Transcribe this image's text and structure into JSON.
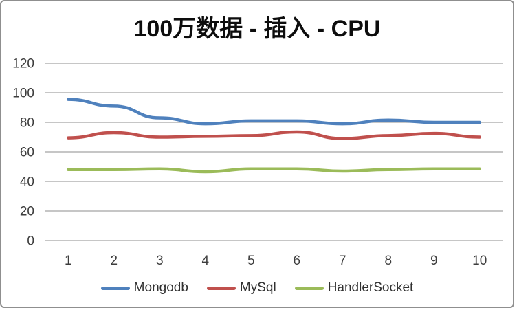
{
  "chart_data": {
    "type": "line",
    "title": "100万数据 - 插入 - CPU",
    "xlabel": "",
    "ylabel": "",
    "categories": [
      "1",
      "2",
      "3",
      "4",
      "5",
      "6",
      "7",
      "8",
      "9",
      "10"
    ],
    "series": [
      {
        "name": "Mongodb",
        "color": "#4F81BD",
        "values": [
          95.5,
          91,
          83,
          79,
          81,
          81,
          79,
          81.5,
          80,
          80
        ]
      },
      {
        "name": "MySql",
        "color": "#C0504D",
        "values": [
          69.5,
          73,
          70,
          70.5,
          71,
          73.5,
          69,
          71,
          72.5,
          70
        ]
      },
      {
        "name": "HandlerSocket",
        "color": "#9BBB59",
        "values": [
          48,
          48,
          48.5,
          46.5,
          48.5,
          48.5,
          47,
          48,
          48.5,
          48.5
        ]
      }
    ],
    "y_axis": {
      "min": 0,
      "max": 120,
      "step": 20,
      "tick_labels": [
        "0",
        "20",
        "40",
        "60",
        "80",
        "100",
        "120"
      ]
    },
    "grid": "horizontal",
    "legend_position": "bottom",
    "colors": {
      "gridline": "#a3a3a3",
      "axis_text": "#3d3d3d",
      "frame_border": "#8f8f8f",
      "background": "#ffffff"
    }
  }
}
